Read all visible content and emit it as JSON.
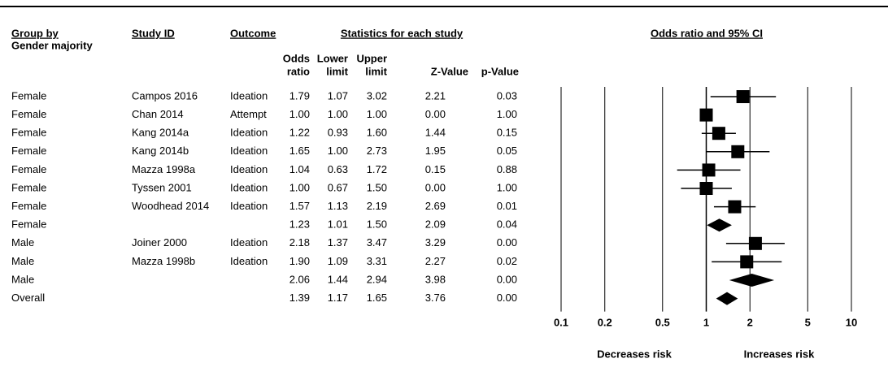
{
  "chart_data": {
    "type": "forest",
    "headers": {
      "group": [
        "Group by",
        "Gender majority"
      ],
      "study": "Study ID",
      "outcome": "Outcome",
      "stats": "Statistics for each study",
      "plot": "Odds ratio and 95% CI",
      "odds_ratio": [
        "Odds",
        "ratio"
      ],
      "lower": [
        "Lower",
        "limit"
      ],
      "upper": [
        "Upper",
        "limit"
      ],
      "z": "Z-Value",
      "p": "p-Value"
    },
    "rows": [
      {
        "group": "Female",
        "study": "Campos 2016",
        "outcome": "Ideation",
        "odds_ratio": "1.79",
        "lower": "1.07",
        "upper": "3.02",
        "z": "2.21",
        "p": "0.03"
      },
      {
        "group": "Female",
        "study": "Chan 2014",
        "outcome": "Attempt",
        "odds_ratio": "1.00",
        "lower": "1.00",
        "upper": "1.00",
        "z": "0.00",
        "p": "1.00"
      },
      {
        "group": "Female",
        "study": "Kang 2014a",
        "outcome": "Ideation",
        "odds_ratio": "1.22",
        "lower": "0.93",
        "upper": "1.60",
        "z": "1.44",
        "p": "0.15"
      },
      {
        "group": "Female",
        "study": "Kang 2014b",
        "outcome": "Ideation",
        "odds_ratio": "1.65",
        "lower": "1.00",
        "upper": "2.73",
        "z": "1.95",
        "p": "0.05"
      },
      {
        "group": "Female",
        "study": "Mazza 1998a",
        "outcome": "Ideation",
        "odds_ratio": "1.04",
        "lower": "0.63",
        "upper": "1.72",
        "z": "0.15",
        "p": "0.88"
      },
      {
        "group": "Female",
        "study": "Tyssen 2001",
        "outcome": "Ideation",
        "odds_ratio": "1.00",
        "lower": "0.67",
        "upper": "1.50",
        "z": "0.00",
        "p": "1.00"
      },
      {
        "group": "Female",
        "study": "Woodhead 2014",
        "outcome": "Ideation",
        "odds_ratio": "1.57",
        "lower": "1.13",
        "upper": "2.19",
        "z": "2.69",
        "p": "0.01"
      },
      {
        "group": "Female",
        "odds_ratio": "1.23",
        "lower": "1.01",
        "upper": "1.50",
        "z": "2.09",
        "p": "0.04"
      },
      {
        "group": "Male",
        "study": "Joiner 2000",
        "outcome": "Ideation",
        "odds_ratio": "2.18",
        "lower": "1.37",
        "upper": "3.47",
        "z": "3.29",
        "p": "0.00"
      },
      {
        "group": "Male",
        "study": "Mazza 1998b",
        "outcome": "Ideation",
        "odds_ratio": "1.90",
        "lower": "1.09",
        "upper": "3.31",
        "z": "2.27",
        "p": "0.02"
      },
      {
        "group": "Male",
        "odds_ratio": "2.06",
        "lower": "1.44",
        "upper": "2.94",
        "z": "3.98",
        "p": "0.00"
      },
      {
        "group": "Overall",
        "odds_ratio": "1.39",
        "lower": "1.17",
        "upper": "1.65",
        "z": "3.76",
        "p": "0.00"
      }
    ],
    "xlim": [
      0.1,
      10
    ],
    "xticks": [
      0.1,
      0.2,
      0.5,
      1,
      2,
      5,
      10
    ],
    "log_scale": true,
    "left_label": "Decreases risk",
    "right_label": "Increases risk"
  }
}
